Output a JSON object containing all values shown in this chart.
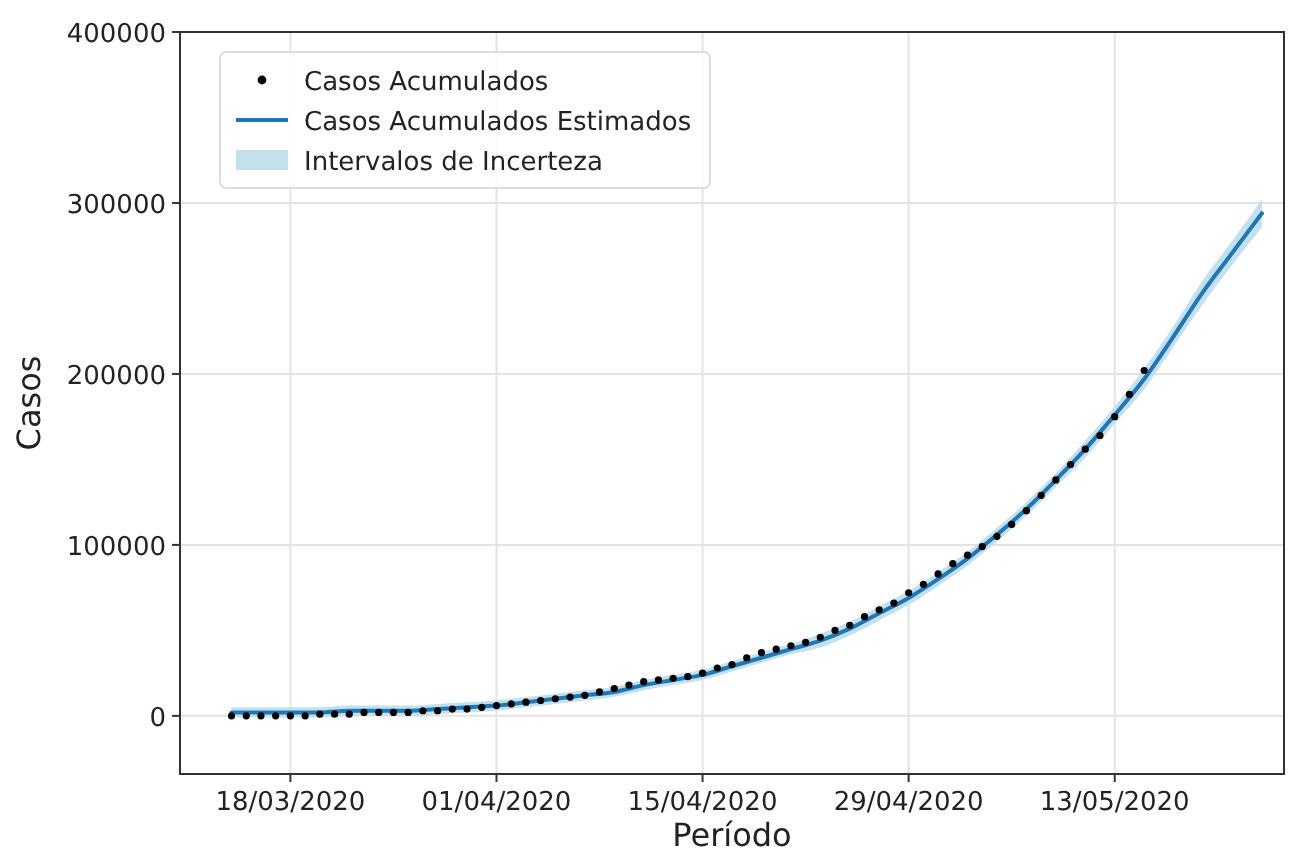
{
  "chart_data": {
    "type": "line",
    "xlabel": "Período",
    "ylabel": "Casos",
    "xlim": [
      "2020-03-10T12:00",
      "2020-05-24T12:00"
    ],
    "xticks": [
      {
        "value": "2020-03-18",
        "label": "18/03/2020"
      },
      {
        "value": "2020-04-01",
        "label": "01/04/2020"
      },
      {
        "value": "2020-04-15",
        "label": "15/04/2020"
      },
      {
        "value": "2020-04-29",
        "label": "29/04/2020"
      },
      {
        "value": "2020-05-13",
        "label": "13/05/2020"
      }
    ],
    "ylim": [
      -34000,
      400000
    ],
    "yticks": [
      0,
      100000,
      200000,
      300000,
      400000
    ],
    "grid": true,
    "legend": "top left",
    "series": [
      {
        "name": "Casos Acumulados Estimados",
        "color": "#1f77b4",
        "marker": "none",
        "line_style": "solid",
        "x": [
          "2020-03-14",
          "2020-03-16",
          "2020-03-18",
          "2020-03-20",
          "2020-03-22",
          "2020-03-24",
          "2020-03-26",
          "2020-03-28",
          "2020-03-30",
          "2020-04-01",
          "2020-04-03",
          "2020-04-05",
          "2020-04-07",
          "2020-04-09",
          "2020-04-11",
          "2020-04-13",
          "2020-04-15",
          "2020-04-17",
          "2020-04-19",
          "2020-04-21",
          "2020-04-23",
          "2020-04-25",
          "2020-04-27",
          "2020-04-29",
          "2020-05-01",
          "2020-05-03",
          "2020-05-05",
          "2020-05-07",
          "2020-05-09",
          "2020-05-11",
          "2020-05-13",
          "2020-05-15",
          "2020-05-17",
          "2020-05-19",
          "2020-05-21",
          "2020-05-23"
        ],
        "values": [
          2000,
          2000,
          2000,
          2000,
          3000,
          3000,
          3000,
          4000,
          5000,
          6000,
          8000,
          10000,
          12000,
          14000,
          18000,
          21000,
          24000,
          29000,
          34000,
          39000,
          44000,
          51000,
          60000,
          69000,
          80000,
          92000,
          106000,
          121000,
          138000,
          156000,
          176000,
          197000,
          222000,
          248000,
          271000,
          294000
        ],
        "lower": [
          -1000,
          -1000,
          -1000,
          -1000,
          0,
          0,
          0,
          1000,
          2000,
          3000,
          5000,
          7000,
          9000,
          11000,
          15000,
          18000,
          21000,
          26000,
          31000,
          36000,
          40000,
          47000,
          56000,
          65000,
          76000,
          88000,
          102000,
          117000,
          134000,
          151000,
          171000,
          191000,
          216000,
          241000,
          264000,
          286000
        ],
        "upper": [
          5000,
          5000,
          5000,
          5000,
          6000,
          6000,
          6000,
          7000,
          8000,
          9000,
          11000,
          13000,
          15000,
          17000,
          21000,
          24000,
          27000,
          32000,
          37000,
          42000,
          48000,
          55000,
          64000,
          73000,
          84000,
          96000,
          110000,
          125000,
          142000,
          161000,
          181000,
          203000,
          228000,
          255000,
          278000,
          302000
        ]
      },
      {
        "name": "Intervalos de Incerteza",
        "type": "area",
        "color": "#c3e0ef"
      },
      {
        "name": "Casos Acumulados",
        "type": "scatter",
        "color": "#000000",
        "marker": "circle",
        "x": [
          "2020-03-14",
          "2020-03-15",
          "2020-03-16",
          "2020-03-17",
          "2020-03-18",
          "2020-03-19",
          "2020-03-20",
          "2020-03-21",
          "2020-03-22",
          "2020-03-23",
          "2020-03-24",
          "2020-03-25",
          "2020-03-26",
          "2020-03-27",
          "2020-03-28",
          "2020-03-29",
          "2020-03-30",
          "2020-03-31",
          "2020-04-01",
          "2020-04-02",
          "2020-04-03",
          "2020-04-04",
          "2020-04-05",
          "2020-04-06",
          "2020-04-07",
          "2020-04-08",
          "2020-04-09",
          "2020-04-10",
          "2020-04-11",
          "2020-04-12",
          "2020-04-13",
          "2020-04-14",
          "2020-04-15",
          "2020-04-16",
          "2020-04-17",
          "2020-04-18",
          "2020-04-19",
          "2020-04-20",
          "2020-04-21",
          "2020-04-22",
          "2020-04-23",
          "2020-04-24",
          "2020-04-25",
          "2020-04-26",
          "2020-04-27",
          "2020-04-28",
          "2020-04-29",
          "2020-04-30",
          "2020-05-01",
          "2020-05-02",
          "2020-05-03",
          "2020-05-04",
          "2020-05-05",
          "2020-05-06",
          "2020-05-07",
          "2020-05-08",
          "2020-05-09",
          "2020-05-10",
          "2020-05-11",
          "2020-05-12",
          "2020-05-13",
          "2020-05-14",
          "2020-05-15"
        ],
        "values": [
          0,
          0,
          0,
          0,
          0,
          0,
          1000,
          1000,
          1000,
          2000,
          2000,
          2000,
          2000,
          3000,
          3000,
          4000,
          4000,
          5000,
          6000,
          7000,
          8000,
          9000,
          10000,
          11000,
          12000,
          14000,
          16000,
          18000,
          20000,
          21000,
          22000,
          23000,
          25000,
          28000,
          30000,
          34000,
          37000,
          39000,
          41000,
          43000,
          46000,
          50000,
          53000,
          58000,
          62000,
          66000,
          72000,
          77000,
          83000,
          89000,
          94000,
          99000,
          105000,
          112000,
          120000,
          129000,
          138000,
          147000,
          156000,
          164000,
          175000,
          188000,
          202000
        ]
      }
    ]
  }
}
